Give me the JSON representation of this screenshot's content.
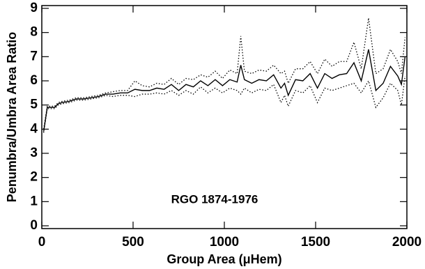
{
  "chart_data": {
    "type": "line",
    "x_label": "Group Area (μHem)",
    "y_label": "Penumbra/Umbra Area Ratio",
    "annotation": "RGO 1874-1976",
    "x": [
      10,
      30,
      50,
      70,
      90,
      110,
      150,
      190,
      230,
      270,
      310,
      350,
      390,
      430,
      470,
      510,
      550,
      590,
      630,
      670,
      710,
      750,
      790,
      830,
      870,
      910,
      950,
      990,
      1030,
      1070,
      1090,
      1110,
      1150,
      1190,
      1230,
      1270,
      1310,
      1330,
      1350,
      1390,
      1430,
      1470,
      1510,
      1550,
      1590,
      1630,
      1670,
      1710,
      1750,
      1790,
      1830,
      1870,
      1910,
      1950,
      1970,
      1990
    ],
    "series": [
      {
        "color": "#000000",
        "dash": "solid",
        "values": [
          3.9,
          4.9,
          4.9,
          4.9,
          5.05,
          5.1,
          5.15,
          5.25,
          5.25,
          5.3,
          5.35,
          5.45,
          5.45,
          5.5,
          5.5,
          5.65,
          5.6,
          5.6,
          5.7,
          5.65,
          5.85,
          5.6,
          5.85,
          5.75,
          6.0,
          5.8,
          6.05,
          5.8,
          6.05,
          5.95,
          6.65,
          6.05,
          5.9,
          6.05,
          6.0,
          6.25,
          5.7,
          5.9,
          5.4,
          6.05,
          6.0,
          6.3,
          5.7,
          6.3,
          6.1,
          6.25,
          6.3,
          6.75,
          6.0,
          7.3,
          5.6,
          5.9,
          6.6,
          6.2,
          5.85,
          7.0
        ]
      },
      {
        "color": "#000000",
        "dash": "dotted",
        "values": [
          4.0,
          4.95,
          4.95,
          4.95,
          5.1,
          5.15,
          5.2,
          5.3,
          5.3,
          5.35,
          5.4,
          5.5,
          5.55,
          5.6,
          5.6,
          6.0,
          5.8,
          5.75,
          5.9,
          5.85,
          6.1,
          5.85,
          6.1,
          6.05,
          6.25,
          6.15,
          6.4,
          6.1,
          6.45,
          6.3,
          7.85,
          6.4,
          6.3,
          6.45,
          6.4,
          6.65,
          6.3,
          6.4,
          5.9,
          6.5,
          6.5,
          6.8,
          6.3,
          6.9,
          6.6,
          6.8,
          6.8,
          7.6,
          6.5,
          8.6,
          6.3,
          6.5,
          7.3,
          6.8,
          6.3,
          7.8
        ]
      },
      {
        "color": "#000000",
        "dash": "dotted",
        "values": [
          3.85,
          4.85,
          4.85,
          4.85,
          5.0,
          5.05,
          5.1,
          5.2,
          5.2,
          5.25,
          5.3,
          5.4,
          5.35,
          5.4,
          5.4,
          5.35,
          5.45,
          5.45,
          5.5,
          5.45,
          5.6,
          5.4,
          5.6,
          5.45,
          5.75,
          5.5,
          5.7,
          5.5,
          5.7,
          5.6,
          5.45,
          5.7,
          5.5,
          5.65,
          5.6,
          5.85,
          5.1,
          5.4,
          4.95,
          5.6,
          5.5,
          5.8,
          5.1,
          5.7,
          5.6,
          5.7,
          5.8,
          5.9,
          5.5,
          6.0,
          4.9,
          5.3,
          5.9,
          5.6,
          5.0,
          6.2
        ]
      }
    ],
    "xlim": [
      0,
      2000
    ],
    "xticks": [
      0,
      500,
      1000,
      1500,
      2000
    ],
    "ylim": [
      0,
      9
    ],
    "yticks": [
      0,
      1,
      2,
      3,
      4,
      5,
      6,
      7,
      8,
      9
    ]
  }
}
